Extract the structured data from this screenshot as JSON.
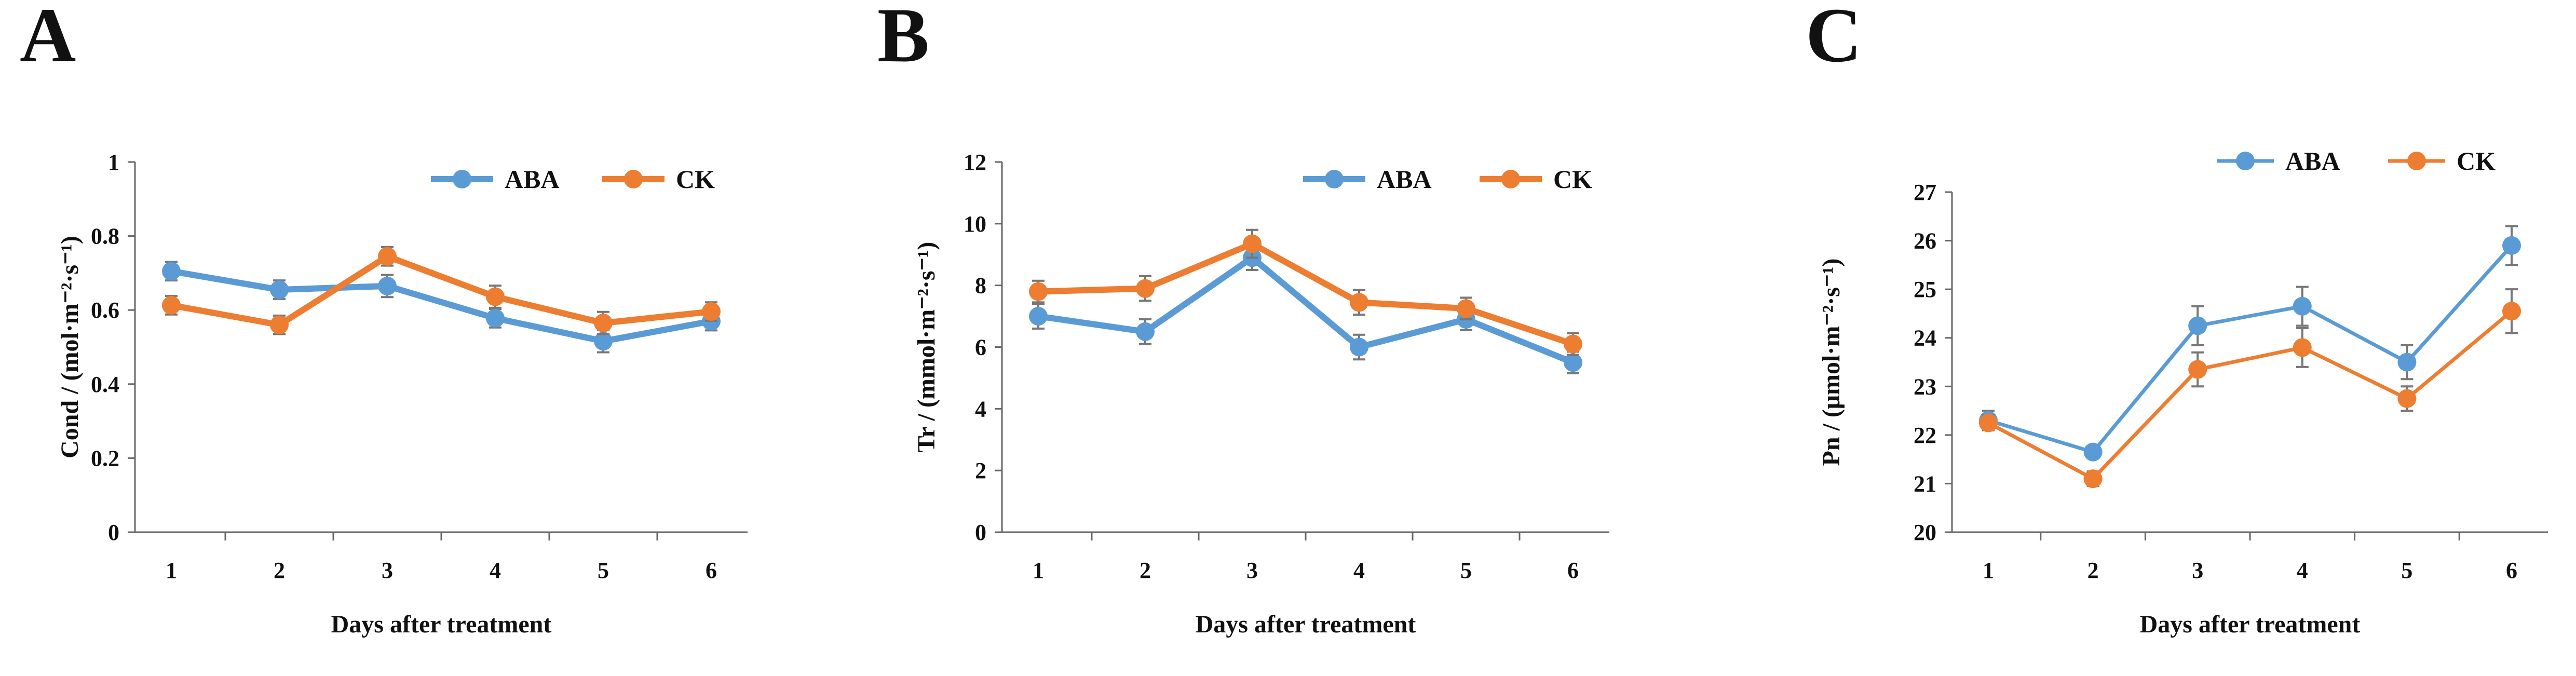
{
  "chart_data": [
    {
      "panel": "A",
      "type": "line",
      "categories": [
        "1",
        "2",
        "3",
        "4",
        "5",
        "6"
      ],
      "xlabel": "Days after treatment",
      "ylabel": "Cond / (mol·m⁻²·s⁻¹)",
      "ylim": [
        0,
        1
      ],
      "yticks": [
        "0",
        "0.2",
        "0.4",
        "0.6",
        "0.8",
        "1"
      ],
      "grid": false,
      "legend_position": "top-right",
      "series": [
        {
          "name": "ABA",
          "color": "#5b9bd5",
          "values": [
            0.705,
            0.655,
            0.665,
            0.578,
            0.516,
            0.57
          ],
          "errors": [
            0.025,
            0.025,
            0.03,
            0.025,
            0.03,
            0.025
          ]
        },
        {
          "name": "CK",
          "color": "#ed7d31",
          "values": [
            0.613,
            0.56,
            0.745,
            0.636,
            0.565,
            0.596
          ],
          "errors": [
            0.025,
            0.025,
            0.025,
            0.03,
            0.03,
            0.025
          ]
        }
      ]
    },
    {
      "panel": "B",
      "type": "line",
      "categories": [
        "1",
        "2",
        "3",
        "4",
        "5",
        "6"
      ],
      "xlabel": "Days after treatment",
      "ylabel": "Tr / (mmol·m⁻²·s⁻¹)",
      "ylim": [
        0,
        12
      ],
      "yticks": [
        "0",
        "2",
        "4",
        "6",
        "8",
        "10",
        "12"
      ],
      "grid": false,
      "legend_position": "top-right",
      "series": [
        {
          "name": "ABA",
          "color": "#5b9bd5",
          "values": [
            7.0,
            6.5,
            8.9,
            6.0,
            6.9,
            5.5
          ],
          "errors": [
            0.4,
            0.4,
            0.4,
            0.4,
            0.35,
            0.35
          ]
        },
        {
          "name": "CK",
          "color": "#ed7d31",
          "values": [
            7.8,
            7.9,
            9.35,
            7.45,
            7.25,
            6.1
          ],
          "errors": [
            0.35,
            0.4,
            0.45,
            0.4,
            0.35,
            0.35
          ]
        }
      ]
    },
    {
      "panel": "C",
      "type": "line",
      "categories": [
        "1",
        "2",
        "3",
        "4",
        "5",
        "6"
      ],
      "xlabel": "Days after treatment",
      "ylabel": "Pn / (μmol·m⁻²·s⁻¹)",
      "ylim": [
        20,
        27
      ],
      "yticks": [
        "20",
        "21",
        "22",
        "23",
        "24",
        "25",
        "26",
        "27"
      ],
      "grid": false,
      "legend_position": "top-right",
      "series": [
        {
          "name": "ABA",
          "color": "#5b9bd5",
          "values": [
            22.3,
            21.65,
            24.25,
            24.65,
            23.5,
            25.9
          ],
          "errors": [
            0.2,
            0.12,
            0.4,
            0.4,
            0.35,
            0.4
          ]
        },
        {
          "name": "CK",
          "color": "#ed7d31",
          "values": [
            22.25,
            21.1,
            23.35,
            23.8,
            22.75,
            24.55
          ],
          "errors": [
            0.15,
            0.15,
            0.35,
            0.4,
            0.25,
            0.45
          ]
        }
      ]
    }
  ]
}
